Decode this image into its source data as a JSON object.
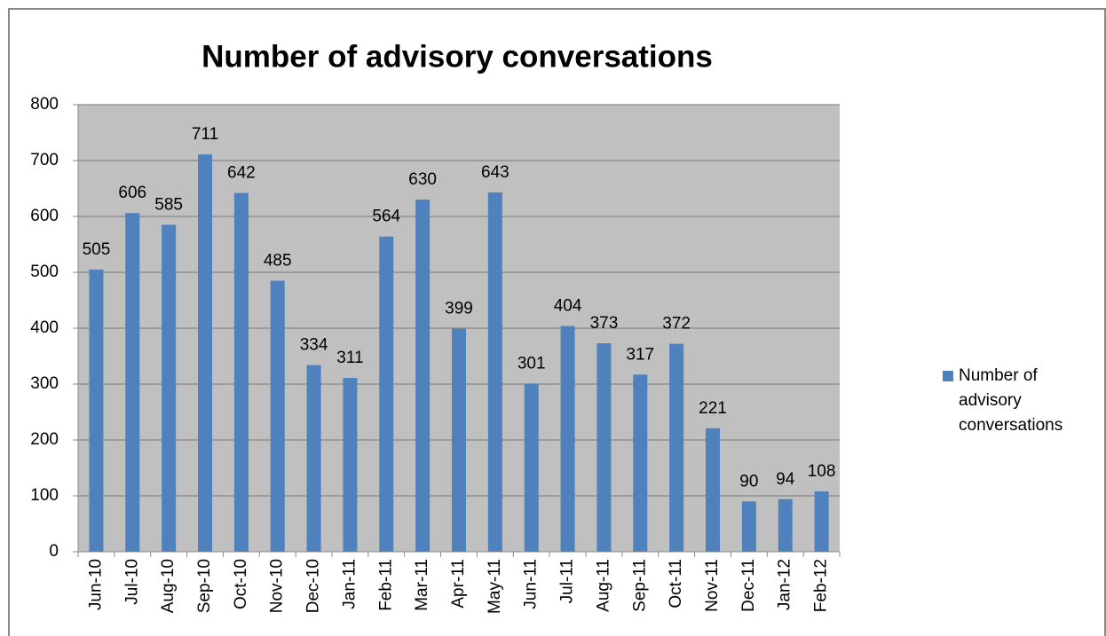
{
  "chart_data": {
    "type": "bar",
    "title": "Number of advisory conversations",
    "categories": [
      "Jun-10",
      "Jul-10",
      "Aug-10",
      "Sep-10",
      "Oct-10",
      "Nov-10",
      "Dec-10",
      "Jan-11",
      "Feb-11",
      "Mar-11",
      "Apr-11",
      "May-11",
      "Jun-11",
      "Jul-11",
      "Aug-11",
      "Sep-11",
      "Oct-11",
      "Nov-11",
      "Dec-11",
      "Jan-12",
      "Feb-12"
    ],
    "series": [
      {
        "name": "Number of advisory conversations",
        "color": "#4f81bd",
        "values": [
          505,
          606,
          585,
          711,
          642,
          485,
          334,
          311,
          564,
          630,
          399,
          643,
          301,
          404,
          373,
          317,
          372,
          221,
          90,
          94,
          108
        ]
      }
    ],
    "ylim": [
      0,
      800
    ],
    "yticks": [
      0,
      100,
      200,
      300,
      400,
      500,
      600,
      700,
      800
    ],
    "grid": true,
    "legend": "right"
  }
}
